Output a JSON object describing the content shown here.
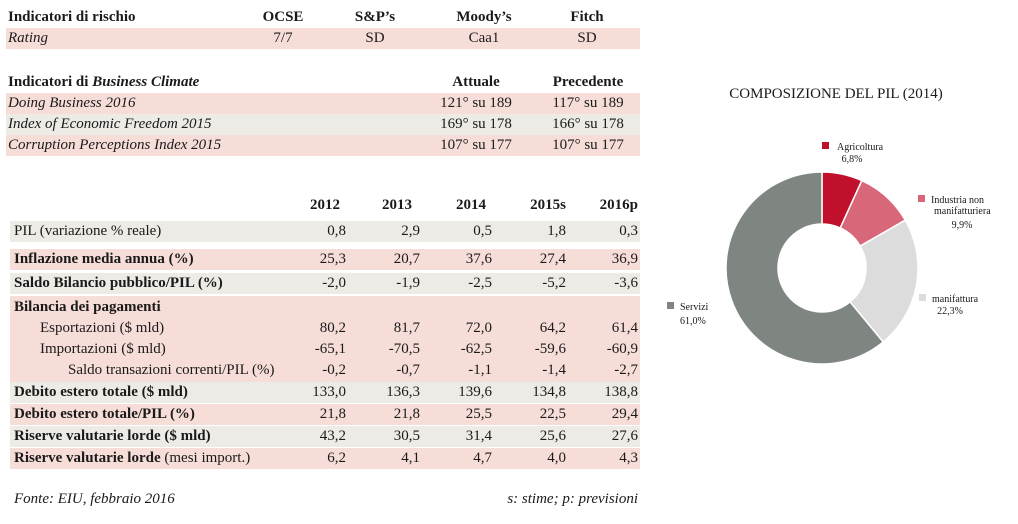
{
  "risk": {
    "header": "Indicatori di rischio",
    "agencies": [
      "OCSE",
      "S&P’s",
      "Moody’s",
      "Fitch"
    ],
    "label": "Rating",
    "values": [
      "7/7",
      "SD",
      "Caa1",
      "SD"
    ]
  },
  "climate": {
    "header_prefix": "Indicatori di ",
    "header_italic": "Business Climate",
    "col_current": "Attuale",
    "col_previous": "Precedente",
    "rows": [
      {
        "label": "Doing Business 2016",
        "current": "121° su 189",
        "previous": "117° su 189"
      },
      {
        "label": "Index of Economic Freedom 2015",
        "current": "169° su 178",
        "previous": "166° su 178"
      },
      {
        "label": "Corruption Perceptions Index 2015",
        "current": "107° su 177",
        "previous": "107° su 177"
      }
    ]
  },
  "macro": {
    "years": [
      "2012",
      "2013",
      "2014",
      "2015s",
      "2016p"
    ],
    "rows": [
      {
        "label": "PIL (variazione % reale)",
        "values": [
          "0,8",
          "2,9",
          "0,5",
          "1,8",
          "0,3"
        ]
      },
      {
        "label": "Inflazione media annua (%)",
        "values": [
          "25,3",
          "20,7",
          "37,6",
          "27,4",
          "36,9"
        ]
      },
      {
        "label": "Saldo Bilancio pubblico/PIL (%)",
        "values": [
          "-2,0",
          "-1,9",
          "-2,5",
          "-5,2",
          "-3,6"
        ]
      },
      {
        "label": "Bilancia dei pagamenti",
        "values": [
          "",
          "",
          "",
          "",
          ""
        ]
      },
      {
        "label": "Esportazioni ($ mld)",
        "values": [
          "80,2",
          "81,7",
          "72,0",
          "64,2",
          "61,4"
        ]
      },
      {
        "label": "Importazioni ($ mld)",
        "values": [
          "-65,1",
          "-70,5",
          "-62,5",
          "-59,6",
          "-60,9"
        ]
      },
      {
        "label": "Saldo transazioni correnti/PIL (%)",
        "values": [
          "-0,2",
          "-0,7",
          "-1,1",
          "-1,4",
          "-2,7"
        ]
      },
      {
        "label": "Debito estero totale ($ mld)",
        "values": [
          "133,0",
          "136,3",
          "139,6",
          "134,8",
          "138,8"
        ]
      },
      {
        "label": "Debito estero totale/PIL (%)",
        "values": [
          "21,8",
          "21,8",
          "25,5",
          "22,5",
          "29,4"
        ]
      },
      {
        "label": "Riserve valutarie lorde ($ mld)",
        "values": [
          "43,2",
          "30,5",
          "31,4",
          "25,6",
          "27,6"
        ]
      },
      {
        "label": "Riserve valutarie lorde",
        "label_suffix": " (mesi import.)",
        "values": [
          "6,2",
          "4,1",
          "4,7",
          "4,0",
          "4,3"
        ]
      }
    ]
  },
  "footer": {
    "source": "Fonte: EIU, febbraio 2016",
    "note": "s: stime; p: previsioni"
  },
  "chart_data": {
    "type": "pie",
    "title": "COMPOSIZIONE DEL PIL (2014)",
    "donut": true,
    "slices": [
      {
        "label": "Agricoltura",
        "value": 6.8,
        "value_label": "6,8%",
        "color": "#c0102c"
      },
      {
        "label": "Industria non manifatturiera",
        "label_lines": [
          "Industria non",
          "manifatturiera"
        ],
        "value": 9.9,
        "value_label": "9,9%",
        "color": "#d9677a"
      },
      {
        "label": "manifattura",
        "value": 22.3,
        "value_label": "22,3%",
        "color": "#dcdcdc"
      },
      {
        "label": "Servizi",
        "value": 61.0,
        "value_label": "61,0%",
        "color": "#7f8581"
      }
    ]
  }
}
